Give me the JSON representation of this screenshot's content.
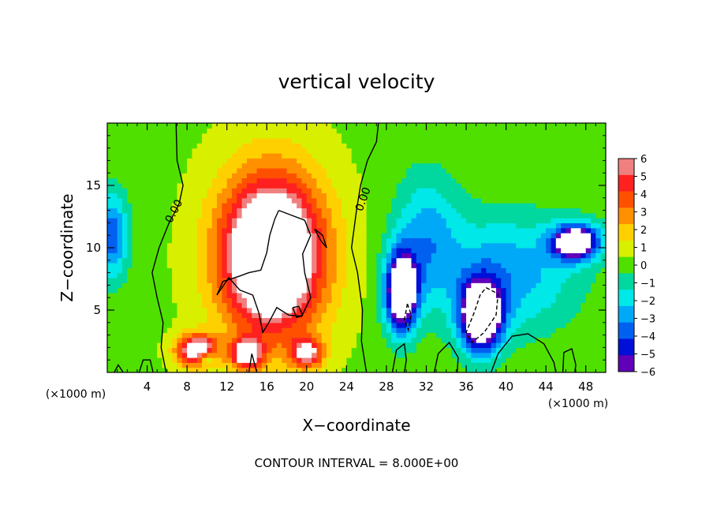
{
  "chart_data": {
    "type": "heatmap",
    "title": "vertical velocity",
    "xlabel": "X−coordinate",
    "ylabel": "Z−coordinate",
    "x_units": "(×1000 m)",
    "y_units": "(×1000 m)",
    "xlim": [
      0,
      50
    ],
    "ylim": [
      0,
      20
    ],
    "x_ticks": [
      4,
      8,
      12,
      16,
      20,
      24,
      28,
      32,
      36,
      40,
      44,
      48
    ],
    "y_ticks": [
      5,
      10,
      15
    ],
    "colorbar": {
      "min": -6,
      "max": 6,
      "ticks": [
        "6",
        "5",
        "4",
        "3",
        "2",
        "1",
        "0",
        "−1",
        "−2",
        "−3",
        "−4",
        "−5",
        "−6"
      ],
      "colors": [
        "#f08080",
        "#ff2020",
        "#ff5000",
        "#ff9000",
        "#ffd000",
        "#d8f000",
        "#50e000",
        "#00d8a0",
        "#00e8e8",
        "#00a8f8",
        "#0060f0",
        "#0010d8",
        "#6000b8"
      ]
    },
    "contour_interval_label": "CONTOUR INTERVAL = 8.000E+00",
    "contour_labels": [
      "0.00",
      "0.00"
    ],
    "features": [
      {
        "label": "updraft",
        "x": 16.5,
        "z": 9.5,
        "rx": 6.5,
        "rz": 8.0,
        "w": 11
      },
      {
        "label": "updraft-base",
        "x": 9.0,
        "z": 1.8,
        "rx": 2.5,
        "rz": 1.6,
        "w": 8
      },
      {
        "label": "updraft-base",
        "x": 14.0,
        "z": 1.5,
        "rx": 2.0,
        "rz": 1.5,
        "w": 7
      },
      {
        "label": "updraft-base",
        "x": 20.0,
        "z": 1.6,
        "rx": 2.0,
        "rz": 1.5,
        "w": 6
      },
      {
        "label": "downdraft",
        "x": 29.5,
        "z": 6.5,
        "rx": 2.0,
        "rz": 4.0,
        "w": -10
      },
      {
        "label": "downdraft",
        "x": 37.5,
        "z": 4.5,
        "rx": 2.6,
        "rz": 3.5,
        "w": -10
      },
      {
        "label": "downdraft",
        "x": 47.0,
        "z": 10.5,
        "rx": 3.0,
        "rz": 1.8,
        "w": -9
      },
      {
        "label": "downdraft-band",
        "x": 40.0,
        "z": 8.0,
        "rx": 9.0,
        "rz": 6.0,
        "w": -3.5
      },
      {
        "label": "downdraft-band",
        "x": 32.0,
        "z": 11.0,
        "rx": 4.0,
        "rz": 6.5,
        "w": -3.0
      },
      {
        "label": "downdraft-left",
        "x": 0.5,
        "z": 11.0,
        "rx": 2.0,
        "rz": 4.5,
        "w": -4.5
      },
      {
        "label": "downdraft-low",
        "x": 10.0,
        "z": 1.2,
        "rx": 1.2,
        "rz": 0.8,
        "w": -3.5
      }
    ]
  }
}
